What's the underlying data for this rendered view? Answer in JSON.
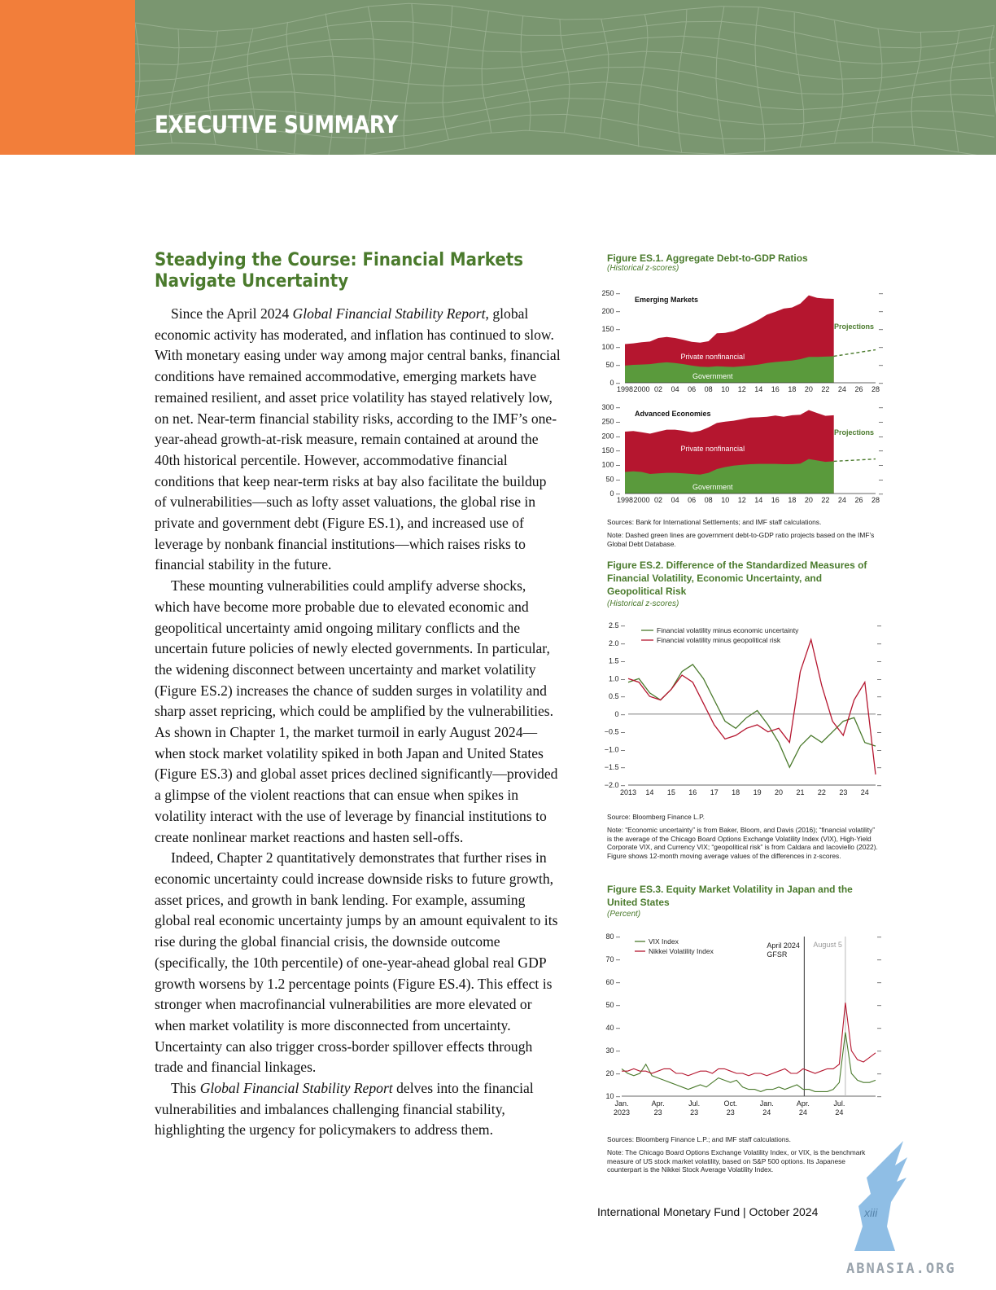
{
  "header": {
    "title": "EXECUTIVE SUMMARY"
  },
  "section": {
    "title": "Steadying the Course: Financial Markets Navigate Uncertainty",
    "p1": {
      "a": "Since the April 2024 ",
      "b": "Global Financial Stability Report",
      "c": ", global economic activity has moderated, and inflation has continued to slow. With monetary easing under way among major central banks, financial conditions have remained accommodative, emerging markets have remained resilient, and asset price volatility has stayed relatively low, on net. Near-term financial stability risks, according to the IMF’s one-year-ahead growth-at-risk measure, remain contained at around the 40th historical percentile. However, accommodative financial conditions that keep near-term risks at bay also facilitate the buildup of vulnerabilities—such as lofty asset valuations, the global rise in private and government debt (Figure ES.1), and increased use of leverage by nonbank financial institutions—which raises risks to financial stability in the future."
    },
    "p2": "These mounting vulnerabilities could amplify adverse shocks, which have become more probable due to elevated economic and geopolitical uncertainty amid ongoing military conflicts and the uncertain future policies of newly elected governments. In particular, the widening disconnect between uncertainty and market volatility (Figure ES.2) increases the chance of sudden surges in volatility and sharp asset repricing, which could be amplified by the vulnerabilities. As shown in Chapter 1, the market turmoil in early August 2024—when stock market volatility spiked in both Japan and United States (Figure ES.3) and global asset prices declined significantly—provided a glimpse of the violent reactions that can ensue when spikes in volatility interact with the use of leverage by financial institutions to create nonlinear market reactions and hasten sell-offs.",
    "p3": "Indeed, Chapter 2 quantitatively demonstrates that further rises in economic uncertainty could increase downside risks to future growth, asset prices, and growth in bank lending. For example, assuming global real economic uncertainty jumps by an amount equivalent to its rise during the global financial crisis, the downside outcome (specifically, the 10th percentile) of one-year-ahead global real GDP growth worsens by 1.2 percentage points (Figure ES.4). This effect is stronger when macrofinancial vulnerabilities are more elevated or when market volatility is more disconnected from uncertainty. Uncertainty can also trigger cross-border spillover effects through trade and financial linkages.",
    "p4": {
      "a": "This ",
      "b": "Global Financial Stability Report",
      "c": " delves into the financial vulnerabilities and imbalances challenging financial stability, highlighting the urgency for policymakers to address them."
    }
  },
  "fig1": {
    "title": "Figure ES.1. Aggregate Debt-to-GDP Ratios",
    "subtitle": "(Historical z-scores)",
    "sources": "Sources: Bank for International Settlements; and IMF staff calculations.",
    "note": "Note: Dashed green lines are government debt-to-GDP ratio projects based on the IMF’s Global Debt Database."
  },
  "fig2": {
    "title": "Figure ES.2. Difference of the Standardized Measures of Financial Volatility, Economic Uncertainty, and Geopolitical Risk",
    "subtitle": "(Historical z-scores)",
    "sources": "Source: Bloomberg Finance L.P.",
    "note": "Note: “Economic uncertainty” is from Baker, Bloom, and Davis (2016); “financial volatility” is the average of the Chicago Board Options Exchange Volatility Index (VIX), High-Yield Corporate VIX, and Currency VIX; “geopolitical risk” is from Caldara and Iacoviello (2022). Figure shows 12-month moving average values of the differences in z-scores."
  },
  "fig3": {
    "title": "Figure ES.3. Equity Market Volatility in Japan and the United States",
    "subtitle": "(Percent)",
    "sources": "Sources: Bloomberg Finance L.P.; and IMF staff calculations.",
    "note": "Note: The Chicago Board Options Exchange Volatility Index, or VIX, is the benchmark measure of US stock market volatility, based on S&P 500 options. Its Japanese counterpart is the Nikkei Stock Average Volatility Index."
  },
  "colors": {
    "green": "#4a7a2c",
    "area_green": "#5a9a3c",
    "area_red": "#b5162f",
    "orange": "#f27e3a",
    "banner": "#7a9670"
  },
  "chart_data": [
    {
      "type": "area",
      "title": "Emerging Markets",
      "annotations": [
        "Projections",
        "Private nonfinancial",
        "Government"
      ],
      "x_labels": [
        "1998",
        "2000",
        "02",
        "04",
        "06",
        "08",
        "10",
        "12",
        "14",
        "16",
        "18",
        "20",
        "22",
        "24",
        "26",
        "28"
      ],
      "y_ticks": [
        "0",
        "50",
        "100",
        "150",
        "200",
        "250"
      ],
      "ylim": [
        0,
        250
      ],
      "x": [
        1998,
        1999,
        2000,
        2001,
        2002,
        2003,
        2004,
        2005,
        2006,
        2007,
        2008,
        2009,
        2010,
        2011,
        2012,
        2013,
        2014,
        2015,
        2016,
        2017,
        2018,
        2019,
        2020,
        2021,
        2022,
        2023
      ],
      "series": [
        {
          "name": "Government",
          "values": [
            48,
            50,
            51,
            52,
            55,
            57,
            55,
            52,
            48,
            45,
            44,
            46,
            45,
            44,
            46,
            48,
            51,
            55,
            58,
            60,
            62,
            66,
            72,
            72,
            73,
            74
          ]
        },
        {
          "name": "Private nonfinancial",
          "values": [
            60,
            60,
            62,
            63,
            70,
            71,
            70,
            68,
            66,
            67,
            72,
            92,
            94,
            100,
            108,
            116,
            125,
            135,
            140,
            147,
            148,
            155,
            172,
            165,
            162,
            160
          ]
        }
      ],
      "projection": {
        "x": [
          2023,
          2028
        ],
        "values": [
          74,
          92
        ]
      }
    },
    {
      "type": "area",
      "title": "Advanced Economies",
      "annotations": [
        "Projections",
        "Private nonfinancial",
        "Government"
      ],
      "x_labels": [
        "1998",
        "2000",
        "02",
        "04",
        "06",
        "08",
        "10",
        "12",
        "14",
        "16",
        "18",
        "20",
        "22",
        "24",
        "26",
        "28"
      ],
      "y_ticks": [
        "0",
        "50",
        "100",
        "150",
        "200",
        "250",
        "300"
      ],
      "ylim": [
        0,
        300
      ],
      "x": [
        1998,
        1999,
        2000,
        2001,
        2002,
        2003,
        2004,
        2005,
        2006,
        2007,
        2008,
        2009,
        2010,
        2011,
        2012,
        2013,
        2014,
        2015,
        2016,
        2017,
        2018,
        2019,
        2020,
        2021,
        2022,
        2023
      ],
      "series": [
        {
          "name": "Government",
          "values": [
            75,
            77,
            75,
            68,
            70,
            72,
            72,
            70,
            68,
            66,
            72,
            85,
            92,
            97,
            100,
            102,
            103,
            103,
            103,
            102,
            102,
            104,
            120,
            115,
            110,
            112
          ]
        },
        {
          "name": "Private nonfinancial",
          "values": [
            140,
            140,
            138,
            140,
            145,
            150,
            150,
            148,
            145,
            152,
            158,
            160,
            158,
            156,
            158,
            162,
            162,
            164,
            168,
            165,
            170,
            170,
            170,
            165,
            160,
            160
          ]
        }
      ],
      "projection": {
        "x": [
          2023,
          2028
        ],
        "values": [
          112,
          120
        ]
      }
    },
    {
      "type": "line",
      "y_ticks": [
        "2.5",
        "2.0",
        "1.5",
        "1.0",
        "0.5",
        "0",
        "−0.5",
        "−1.0",
        "−1.5",
        "−2.0"
      ],
      "x_labels": [
        "2013",
        "14",
        "15",
        "16",
        "17",
        "18",
        "19",
        "20",
        "21",
        "22",
        "23",
        "24"
      ],
      "ylim": [
        -2.0,
        2.5
      ],
      "x": [
        2013.0,
        2013.5,
        2014.0,
        2014.5,
        2015.0,
        2015.5,
        2016.0,
        2016.5,
        2017.0,
        2017.5,
        2018.0,
        2018.5,
        2019.0,
        2019.5,
        2020.0,
        2020.5,
        2021.0,
        2021.5,
        2022.0,
        2022.5,
        2023.0,
        2023.5,
        2024.0,
        2024.5
      ],
      "series": [
        {
          "name": "Financial volatility minus economic uncertainty",
          "values": [
            0.9,
            1.0,
            0.6,
            0.4,
            0.7,
            1.2,
            1.4,
            1.0,
            0.4,
            -0.2,
            -0.4,
            -0.1,
            0.1,
            -0.3,
            -0.8,
            -1.5,
            -0.9,
            -0.6,
            -0.8,
            -0.5,
            -0.2,
            -0.1,
            -0.8,
            -0.9
          ]
        },
        {
          "name": "Financial volatility minus geopolitical risk",
          "values": [
            1.0,
            0.9,
            0.5,
            0.4,
            0.7,
            1.1,
            0.9,
            0.3,
            -0.3,
            -0.7,
            -0.6,
            -0.4,
            -0.3,
            -0.5,
            -0.4,
            -0.8,
            1.2,
            2.1,
            0.8,
            -0.2,
            -0.6,
            0.4,
            0.9,
            -1.7
          ]
        }
      ]
    },
    {
      "type": "line",
      "y_ticks": [
        "80",
        "70",
        "60",
        "50",
        "40",
        "30",
        "20",
        "10"
      ],
      "x_labels": [
        "Jan. 2023",
        "Apr. 23",
        "Jul. 23",
        "Oct. 23",
        "Jan. 24",
        "Apr. 24",
        "Jul. 24"
      ],
      "ylim": [
        10,
        80
      ],
      "annotations": [
        "April 2024 GFSR",
        "August 5"
      ],
      "x": [
        0,
        0.5,
        1,
        1.5,
        2,
        2.5,
        3,
        3.5,
        4,
        4.5,
        5,
        5.5,
        6,
        6.5,
        7,
        7.5,
        8,
        8.5,
        9,
        9.5,
        10,
        10.5,
        11,
        11.5,
        12,
        12.5,
        13,
        13.5,
        14,
        14.5,
        15,
        15.5,
        16,
        16.5,
        17,
        17.5,
        18,
        18.5,
        19,
        19.5,
        20,
        20.5,
        21
      ],
      "series": [
        {
          "name": "VIX Index",
          "values": [
            22,
            20,
            19,
            20,
            24,
            19,
            18,
            17,
            16,
            15,
            14,
            13,
            14,
            15,
            14,
            16,
            18,
            17,
            16,
            17,
            14,
            13,
            13,
            12,
            13,
            13,
            14,
            13,
            14,
            15,
            13,
            13,
            12,
            12,
            12,
            13,
            16,
            38,
            20,
            17,
            16,
            16,
            17
          ]
        },
        {
          "name": "Nikkei Volatility Index",
          "values": [
            21,
            21,
            22,
            21,
            21,
            20,
            21,
            22,
            22,
            20,
            20,
            19,
            20,
            21,
            21,
            20,
            22,
            22,
            21,
            20,
            20,
            19,
            20,
            20,
            19,
            20,
            21,
            22,
            20,
            20,
            22,
            21,
            20,
            21,
            22,
            22,
            24,
            51,
            30,
            26,
            25,
            27,
            29
          ]
        }
      ]
    }
  ]
}
